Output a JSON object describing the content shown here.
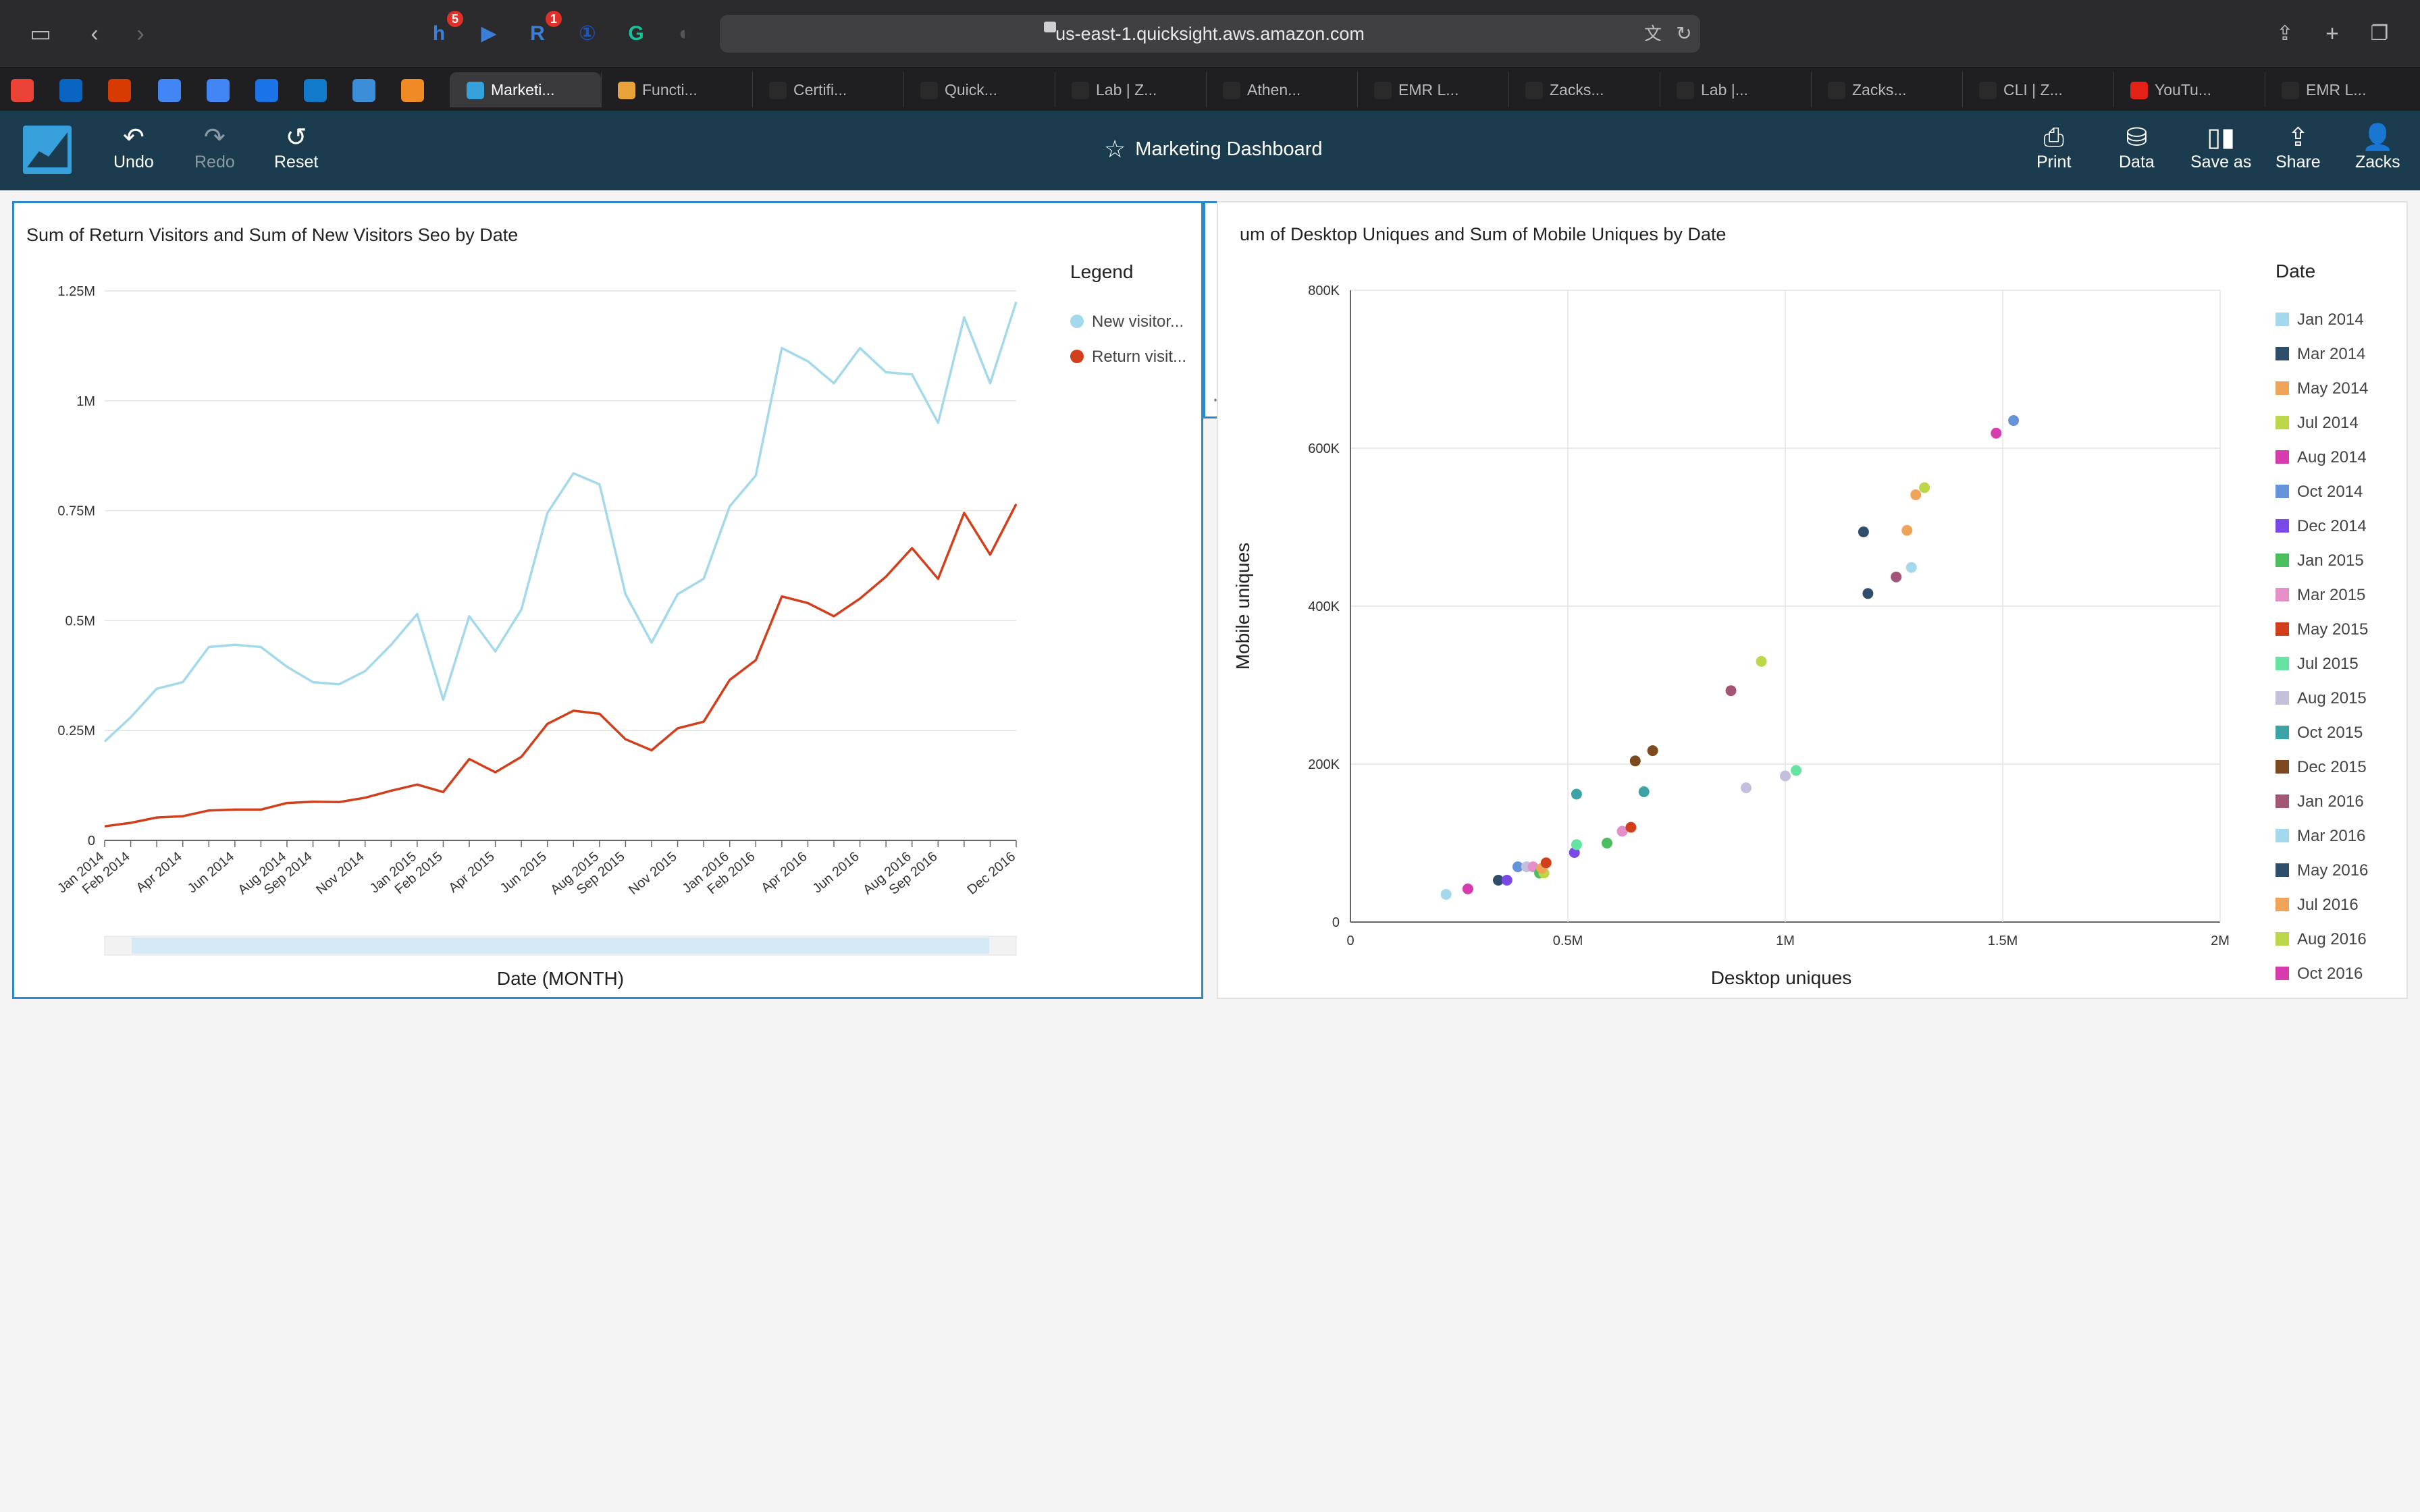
{
  "browser": {
    "url": "us-east-1.quicksight.aws.amazon.com",
    "extensions": [
      {
        "icon": "honey-icon",
        "letter": "h",
        "color": "#3c7fd8",
        "badge": "5"
      },
      {
        "icon": "readwise-icon",
        "letter": "▶",
        "color": "#3c7fd8",
        "badge": ""
      },
      {
        "icon": "r-extension-icon",
        "letter": "R",
        "color": "#3c7fd8",
        "badge": "1"
      },
      {
        "icon": "onepassword-icon",
        "letter": "①",
        "color": "#1a56c2",
        "badge": ""
      },
      {
        "icon": "grammarly-icon",
        "letter": "G",
        "color": "#15c39a",
        "badge": ""
      },
      {
        "icon": "privacy-shield-icon",
        "letter": "◐",
        "color": "#555",
        "badge": ""
      }
    ]
  },
  "tabs": [
    {
      "label": "Marketi...",
      "active": true,
      "icon_color": "#35a0da"
    },
    {
      "label": "Functi...",
      "active": false,
      "icon_color": "#e8a33a"
    },
    {
      "label": "Certifi...",
      "active": false,
      "icon_color": "#2a2a2a"
    },
    {
      "label": "Quick...",
      "active": false,
      "icon_color": "#2a2a2a"
    },
    {
      "label": "Lab | Z...",
      "active": false,
      "icon_color": "#2a2a2a"
    },
    {
      "label": "Athen...",
      "active": false,
      "icon_color": "#2a2a2a"
    },
    {
      "label": "EMR L...",
      "active": false,
      "icon_color": "#2a2a2a"
    },
    {
      "label": "Zacks...",
      "active": false,
      "icon_color": "#2a2a2a"
    },
    {
      "label": "Lab |...",
      "active": false,
      "icon_color": "#2a2a2a"
    },
    {
      "label": "Zacks...",
      "active": false,
      "icon_color": "#2a2a2a"
    },
    {
      "label": "CLI | Z...",
      "active": false,
      "icon_color": "#2a2a2a"
    },
    {
      "label": "YouTu...",
      "active": false,
      "icon_color": "#e62117"
    },
    {
      "label": "EMR L...",
      "active": false,
      "icon_color": "#2a2a2a"
    }
  ],
  "header": {
    "title": "Marketing Dashboard",
    "undo": "Undo",
    "redo": "Redo",
    "reset": "Reset",
    "print": "Print",
    "data": "Data",
    "save_as": "Save as",
    "share": "Share",
    "user": "Zacks"
  },
  "colors": {
    "new_visitors": "#a3d9ea",
    "return_visitors": "#d13f1d",
    "header_bg": "#1b3b4e",
    "selection": "#2d89c9"
  },
  "chart_data": [
    {
      "type": "line",
      "title": "Sum of Return Visitors and Sum of New Visitors Seo by Date",
      "xlabel": "Date (MONTH)",
      "ylabel": "",
      "legend_title": "Legend",
      "legend_position": "right",
      "ylim": [
        0,
        1250000
      ],
      "y_ticks": [
        "0",
        "0.25M",
        "0.5M",
        "0.75M",
        "1M",
        "1.25M"
      ],
      "x": [
        "Jan 2014",
        "Feb 2014",
        "Mar 2014",
        "Apr 2014",
        "May 2014",
        "Jun 2014",
        "Jul 2014",
        "Aug 2014",
        "Sep 2014",
        "Oct 2014",
        "Nov 2014",
        "Dec 2014",
        "Jan 2015",
        "Feb 2015",
        "Mar 2015",
        "Apr 2015",
        "May 2015",
        "Jun 2015",
        "Jul 2015",
        "Aug 2015",
        "Sep 2015",
        "Oct 2015",
        "Nov 2015",
        "Dec 2015",
        "Jan 2016",
        "Feb 2016",
        "Mar 2016",
        "Apr 2016",
        "May 2016",
        "Jun 2016",
        "Jul 2016",
        "Aug 2016",
        "Sep 2016",
        "Oct 2016",
        "Nov 2016",
        "Dec 2016"
      ],
      "x_tick_labels": [
        "Jan 2014",
        "Feb 2014",
        "Apr 2014",
        "Jun 2014",
        "Aug 2014",
        "Sep 2014",
        "Nov 2014",
        "Jan 2015",
        "Feb 2015",
        "Apr 2015",
        "Jun 2015",
        "Aug 2015",
        "Sep 2015",
        "Nov 2015",
        "Jan 2016",
        "Feb 2016",
        "Apr 2016",
        "Jun 2016",
        "Aug 2016",
        "Sep 2016",
        "Dec 2016"
      ],
      "series": [
        {
          "name": "New visitor...",
          "color": "#a3d9ea",
          "values": [
            225000,
            280000,
            345000,
            360000,
            440000,
            445000,
            440000,
            395000,
            360000,
            355000,
            385000,
            445000,
            515000,
            320000,
            510000,
            430000,
            525000,
            745000,
            835000,
            810000,
            560000,
            450000,
            560000,
            595000,
            760000,
            830000,
            1120000,
            1090000,
            1040000,
            1120000,
            1065000,
            1060000,
            950000,
            1190000,
            1040000,
            1225000
          ]
        },
        {
          "name": "Return visit...",
          "color": "#d13f1d",
          "values": [
            32000,
            40000,
            52000,
            55000,
            68000,
            70000,
            70000,
            85000,
            88000,
            87000,
            97000,
            113000,
            127000,
            110000,
            185000,
            155000,
            190000,
            265000,
            295000,
            288000,
            230000,
            205000,
            255000,
            270000,
            365000,
            410000,
            555000,
            540000,
            510000,
            550000,
            600000,
            665000,
            595000,
            745000,
            650000,
            765000
          ]
        }
      ]
    },
    {
      "type": "scatter",
      "title": "Sum of Desktop Uniques and Sum of Mobile Uniques by Date",
      "visible_title": "um of Desktop Uniques and Sum of Mobile Uniques by Date",
      "xlabel": "Desktop uniques",
      "ylabel": "Mobile uniques",
      "legend_title": "Date",
      "legend_position": "right",
      "xlim": [
        0,
        2000000
      ],
      "ylim": [
        0,
        800000
      ],
      "x_ticks": [
        "0",
        "0.5M",
        "1M",
        "1.5M",
        "2M"
      ],
      "y_ticks": [
        "0",
        "200K",
        "400K",
        "600K",
        "800K"
      ],
      "legend": [
        {
          "name": "Jan 2014",
          "color": "#a3d9ea"
        },
        {
          "name": "Mar 2014",
          "color": "#2f4e6b"
        },
        {
          "name": "May 2014",
          "color": "#f0a458"
        },
        {
          "name": "Jul 2014",
          "color": "#bcd84a"
        },
        {
          "name": "Aug 2014",
          "color": "#d63cae"
        },
        {
          "name": "Oct 2014",
          "color": "#6493d9"
        },
        {
          "name": "Dec 2014",
          "color": "#7b4ae6"
        },
        {
          "name": "Jan 2015",
          "color": "#4cbe5e"
        },
        {
          "name": "Mar 2015",
          "color": "#e58fc8"
        },
        {
          "name": "May 2015",
          "color": "#d13f1d"
        },
        {
          "name": "Jul 2015",
          "color": "#66e3a1"
        },
        {
          "name": "Aug 2015",
          "color": "#c4c0dc"
        },
        {
          "name": "Oct 2015",
          "color": "#3ca3a6"
        },
        {
          "name": "Dec 2015",
          "color": "#7d4a1f"
        },
        {
          "name": "Jan 2016",
          "color": "#a25576"
        },
        {
          "name": "Mar 2016",
          "color": "#a3d9ea"
        },
        {
          "name": "May 2016",
          "color": "#2f4e6b"
        },
        {
          "name": "Jul 2016",
          "color": "#f0a458"
        },
        {
          "name": "Aug 2016",
          "color": "#bcd84a"
        },
        {
          "name": "Oct 2016",
          "color": "#d63cae"
        }
      ],
      "points": [
        {
          "x": 220000,
          "y": 35000,
          "color": "#a3d9ea"
        },
        {
          "x": 270000,
          "y": 42000,
          "color": "#d63cae"
        },
        {
          "x": 340000,
          "y": 53000,
          "color": "#2f4e6b"
        },
        {
          "x": 360000,
          "y": 53000,
          "color": "#7b4ae6"
        },
        {
          "x": 385000,
          "y": 70000,
          "color": "#6493d9"
        },
        {
          "x": 405000,
          "y": 70000,
          "color": "#c4c0dc"
        },
        {
          "x": 420000,
          "y": 70000,
          "color": "#e58fc8"
        },
        {
          "x": 435000,
          "y": 62000,
          "color": "#4cbe5e"
        },
        {
          "x": 445000,
          "y": 62000,
          "color": "#bcd84a"
        },
        {
          "x": 440000,
          "y": 68000,
          "color": "#f0a458"
        },
        {
          "x": 450000,
          "y": 75000,
          "color": "#d13f1d"
        },
        {
          "x": 515000,
          "y": 88000,
          "color": "#7b4ae6"
        },
        {
          "x": 520000,
          "y": 98000,
          "color": "#66e3a1"
        },
        {
          "x": 520000,
          "y": 162000,
          "color": "#3ca3a6"
        },
        {
          "x": 590000,
          "y": 100000,
          "color": "#4cbe5e"
        },
        {
          "x": 625000,
          "y": 115000,
          "color": "#e58fc8"
        },
        {
          "x": 645000,
          "y": 120000,
          "color": "#d13f1d"
        },
        {
          "x": 655000,
          "y": 204000,
          "color": "#7d4a1f"
        },
        {
          "x": 675000,
          "y": 165000,
          "color": "#3ca3a6"
        },
        {
          "x": 695000,
          "y": 217000,
          "color": "#7d4a1f"
        },
        {
          "x": 875000,
          "y": 293000,
          "color": "#a25576"
        },
        {
          "x": 910000,
          "y": 170000,
          "color": "#c4c0dc"
        },
        {
          "x": 945000,
          "y": 330000,
          "color": "#bcd84a"
        },
        {
          "x": 1000000,
          "y": 185000,
          "color": "#c4c0dc"
        },
        {
          "x": 1025000,
          "y": 192000,
          "color": "#66e3a1"
        },
        {
          "x": 1180000,
          "y": 494000,
          "color": "#2f4e6b"
        },
        {
          "x": 1190000,
          "y": 416000,
          "color": "#2f4e6b"
        },
        {
          "x": 1255000,
          "y": 437000,
          "color": "#a25576"
        },
        {
          "x": 1280000,
          "y": 496000,
          "color": "#f0a458"
        },
        {
          "x": 1290000,
          "y": 449000,
          "color": "#a3d9ea"
        },
        {
          "x": 1300000,
          "y": 541000,
          "color": "#f0a458"
        },
        {
          "x": 1320000,
          "y": 550000,
          "color": "#bcd84a"
        },
        {
          "x": 1485000,
          "y": 619000,
          "color": "#d63cae"
        },
        {
          "x": 1525000,
          "y": 635000,
          "color": "#6493d9"
        }
      ]
    }
  ]
}
